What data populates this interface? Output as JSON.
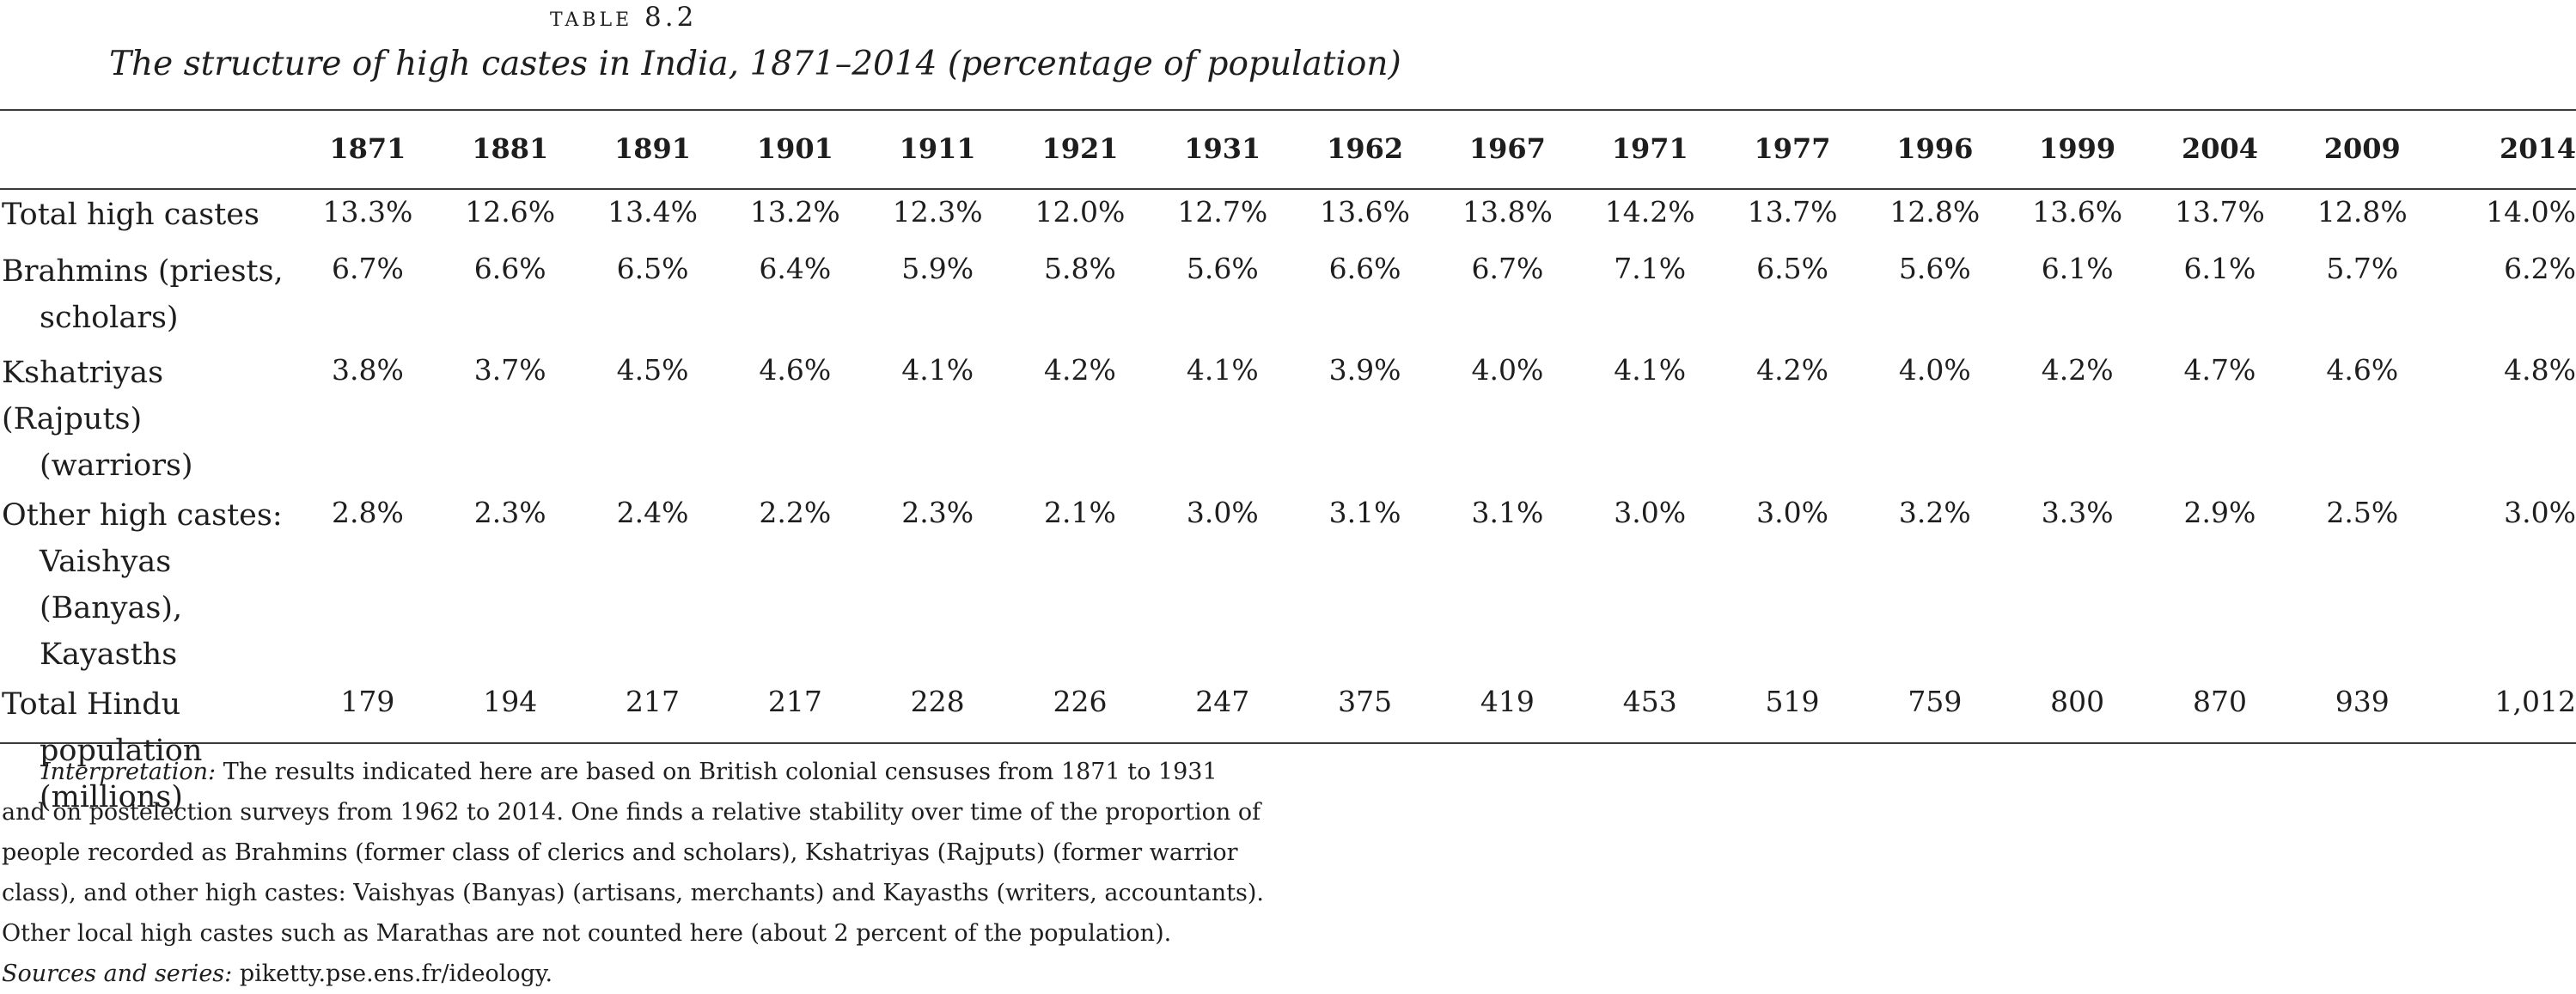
{
  "table_label": "TABLE 8.2",
  "title": "The structure of high castes in India, 1871–2014 (percentage of population)",
  "columns": [
    "1871",
    "1881",
    "1891",
    "1901",
    "1911",
    "1921",
    "1931",
    "1962",
    "1967",
    "1971",
    "1977",
    "1996",
    "1999",
    "2004",
    "2009",
    "2014"
  ],
  "rows": [
    {
      "label_lines": [
        "Total high castes"
      ],
      "values": [
        "13.3%",
        "12.6%",
        "13.4%",
        "13.2%",
        "12.3%",
        "12.0%",
        "12.7%",
        "13.6%",
        "13.8%",
        "14.2%",
        "13.7%",
        "12.8%",
        "13.6%",
        "13.7%",
        "12.8%",
        "14.0%"
      ]
    },
    {
      "label_lines": [
        "Brahmins (priests,",
        "scholars)"
      ],
      "values": [
        "6.7%",
        "6.6%",
        "6.5%",
        "6.4%",
        "5.9%",
        "5.8%",
        "5.6%",
        "6.6%",
        "6.7%",
        "7.1%",
        "6.5%",
        "5.6%",
        "6.1%",
        "6.1%",
        "5.7%",
        "6.2%"
      ]
    },
    {
      "label_lines": [
        "Kshatriyas (Rajputs)",
        "(warriors)"
      ],
      "values": [
        "3.8%",
        "3.7%",
        "4.5%",
        "4.6%",
        "4.1%",
        "4.2%",
        "4.1%",
        "3.9%",
        "4.0%",
        "4.1%",
        "4.2%",
        "4.0%",
        "4.2%",
        "4.7%",
        "4.6%",
        "4.8%"
      ]
    },
    {
      "label_lines": [
        "Other high castes:",
        "Vaishyas (Banyas),",
        "Kayasths"
      ],
      "values": [
        "2.8%",
        "2.3%",
        "2.4%",
        "2.2%",
        "2.3%",
        "2.1%",
        "3.0%",
        "3.1%",
        "3.1%",
        "3.0%",
        "3.0%",
        "3.2%",
        "3.3%",
        "2.9%",
        "2.5%",
        "3.0%"
      ]
    },
    {
      "label_lines": [
        "Total Hindu",
        "population",
        "(millions)"
      ],
      "values": [
        "179",
        "194",
        "217",
        "217",
        "228",
        "226",
        "247",
        "375",
        "419",
        "453",
        "519",
        "759",
        "800",
        "870",
        "939",
        "1,012"
      ]
    }
  ],
  "notes": {
    "interpretation_label": "Interpretation:",
    "interpretation_text": " The results indicated here are based on British colonial censuses from 1871 to 1931 and on postelection surveys from 1962 to 2014. One finds a relative stability over time of the proportion of people recorded as Brahmins (former class of clerics and scholars), Kshatriyas (Rajputs) (former warrior class), and other high castes: Vaishyas (Banyas) (artisans, merchants) and Kayasths (writers, accountants). Other local high castes such as Marathas are not counted here (about 2 percent of the population). ",
    "sources_label": "Sources and series:",
    "sources_text": " piketty.pse.ens.fr/ideology."
  }
}
